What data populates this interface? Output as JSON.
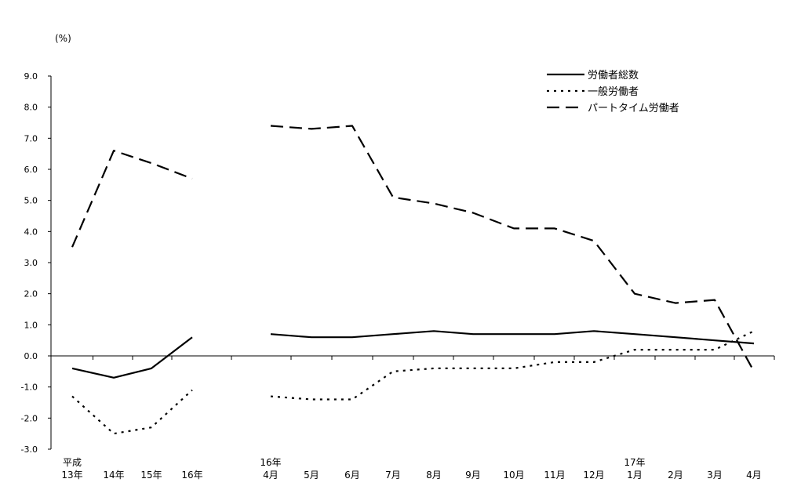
{
  "chart_data": {
    "type": "line",
    "unit_label": "(%)",
    "ylim": [
      -3.0,
      9.0
    ],
    "y_ticks": [
      "9.0",
      "8.0",
      "7.0",
      "6.0",
      "5.0",
      "4.0",
      "3.0",
      "2.0",
      "1.0",
      "0.0",
      "-1.0",
      "-2.0",
      "-3.0"
    ],
    "x_labels_line1": [
      "平成",
      "",
      "",
      "",
      "16年",
      "",
      "",
      "",
      "",
      "",
      "",
      "",
      "",
      "17年",
      "",
      "",
      ""
    ],
    "x_labels_line2": [
      "13年",
      "14年",
      "15年",
      "16年",
      "4月",
      "5月",
      "6月",
      "7月",
      "8月",
      "9月",
      "10月",
      "11月",
      "12月",
      "1月",
      "2月",
      "3月",
      "4月"
    ],
    "categories": [
      "平成13年",
      "14年",
      "15年",
      "16年",
      "16年4月",
      "5月",
      "6月",
      "7月",
      "8月",
      "9月",
      "10月",
      "11月",
      "12月",
      "17年1月",
      "2月",
      "3月",
      "4月"
    ],
    "segments": [
      [
        0,
        3
      ],
      [
        4,
        16
      ]
    ],
    "series": [
      {
        "name": "労働者総数",
        "style": "solid",
        "values": [
          -0.4,
          -0.7,
          -0.4,
          0.6,
          0.7,
          0.6,
          0.6,
          0.7,
          0.8,
          0.7,
          0.7,
          0.7,
          0.8,
          0.7,
          0.6,
          0.5,
          0.4
        ]
      },
      {
        "name": "一般労働者",
        "style": "dotted",
        "values": [
          -1.3,
          -2.5,
          -2.3,
          -1.1,
          -1.3,
          -1.4,
          -1.4,
          -0.5,
          -0.4,
          -0.4,
          -0.4,
          -0.2,
          -0.2,
          0.2,
          0.2,
          0.2,
          0.8
        ]
      },
      {
        "name": "パートタイム労働者",
        "style": "dashed",
        "values": [
          3.5,
          6.6,
          6.2,
          5.7,
          7.4,
          7.3,
          7.4,
          5.1,
          4.9,
          4.6,
          4.1,
          4.1,
          3.7,
          2.0,
          1.7,
          1.8,
          -0.5
        ]
      }
    ],
    "legend": "top-right",
    "grid": false
  }
}
